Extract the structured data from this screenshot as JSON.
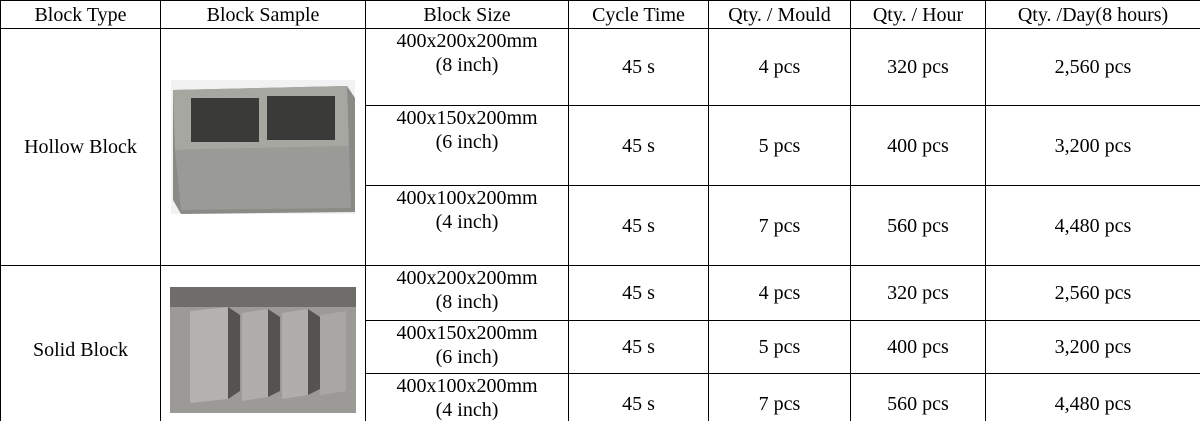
{
  "table": {
    "header": [
      "Block Type",
      "Block Sample",
      "Block Size",
      "Cycle Time",
      "Qty. / Mould",
      "Qty. / Hour",
      "Qty. /Day(8 hours)"
    ],
    "groups": [
      {
        "type": "Hollow Block",
        "rows": [
          {
            "size": "400x200x200mm",
            "inch": "(8 inch)",
            "cycle": "45 s",
            "mould": "4 pcs",
            "hour": "320 pcs",
            "day": "2,560 pcs"
          },
          {
            "size": "400x150x200mm",
            "inch": "(6 inch)",
            "cycle": "45 s",
            "mould": "5 pcs",
            "hour": "400 pcs",
            "day": "3,200 pcs"
          },
          {
            "size": "400x100x200mm",
            "inch": "(4 inch)",
            "cycle": "45 s",
            "mould": "7 pcs",
            "hour": "560 pcs",
            "day": "4,480 pcs"
          }
        ]
      },
      {
        "type": "Solid Block",
        "rows": [
          {
            "size": "400x200x200mm",
            "inch": "(8 inch)",
            "cycle": "45 s",
            "mould": "4 pcs",
            "hour": "320 pcs",
            "day": "2,560 pcs"
          },
          {
            "size": "400x150x200mm",
            "inch": "(6 inch)",
            "cycle": "45 s",
            "mould": "5 pcs",
            "hour": "400 pcs",
            "day": "3,200 pcs"
          },
          {
            "size": "400x100x200mm",
            "inch": "(4 inch)",
            "cycle": "45 s",
            "mould": "7 pcs",
            "hour": "560 pcs",
            "day": "4,480 pcs"
          }
        ]
      }
    ]
  }
}
